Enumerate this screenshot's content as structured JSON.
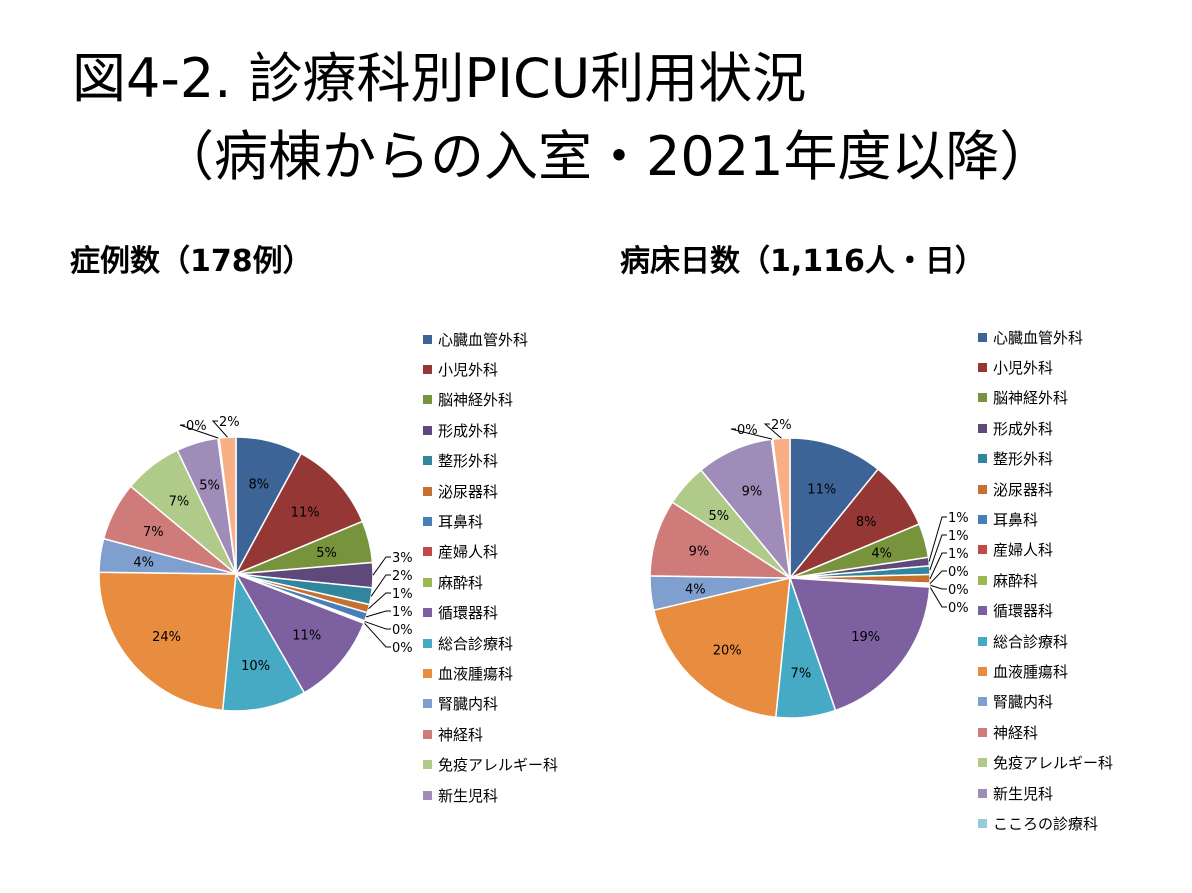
{
  "title": {
    "line1": "図4-2. 診療科別PICU利用状況",
    "line2": "（病棟からの入室・2021年度以降）"
  },
  "chart_data": [
    {
      "type": "pie",
      "title": "症例数（178例）",
      "legend_position": "right",
      "categories": [
        "心臓血管外科",
        "小児外科",
        "脳神経外科",
        "形成外科",
        "整形外科",
        "泌尿器科",
        "耳鼻科",
        "産婦人科",
        "麻酔科",
        "循環器科",
        "総合診療科",
        "血液腫瘍科",
        "腎臓内科",
        "神経科",
        "免疫アレルギー科",
        "新生児科",
        "",
        ""
      ],
      "legend": [
        "心臓血管外科",
        "小児外科",
        "脳神経外科",
        "形成外科",
        "整形外科",
        "泌尿器科",
        "耳鼻科",
        "産婦人科",
        "麻酔科",
        "循環器科",
        "総合診療科",
        "血液腫瘍科",
        "腎臓内科",
        "神経科",
        "免疫アレルギー科",
        "新生児科"
      ],
      "values": [
        8,
        11,
        5,
        3,
        2,
        1,
        1,
        0,
        0,
        11,
        10,
        24,
        4,
        7,
        7,
        5,
        0,
        2
      ],
      "labels": [
        "8%",
        "11%",
        "5%",
        "3%",
        "2%",
        "1%",
        "1%",
        "0%",
        "0%",
        "11%",
        "10%",
        "24%",
        "4%",
        "7%",
        "7%",
        "5%",
        "0%",
        "2%"
      ],
      "colors": [
        "#3C6496",
        "#953735",
        "#77933C",
        "#5F497A",
        "#31859C",
        "#C4702E",
        "#4A7EBB",
        "#BE4B48",
        "#98B954",
        "#7D60A0",
        "#46AAC5",
        "#E88C3F",
        "#7F9FCF",
        "#CF7B79",
        "#B0CA89",
        "#A08CB8",
        "#93CDDD",
        "#F9AF86"
      ]
    },
    {
      "type": "pie",
      "title": "病床日数（1,116人・日）",
      "legend_position": "right",
      "categories": [
        "心臓血管外科",
        "小児外科",
        "脳神経外科",
        "形成外科",
        "整形外科",
        "泌尿器科",
        "耳鼻科",
        "産婦人科",
        "麻酔科",
        "循環器科",
        "総合診療科",
        "血液腫瘍科",
        "腎臓内科",
        "神経科",
        "免疫アレルギー科",
        "新生児科",
        "こころの診療科",
        ""
      ],
      "legend": [
        "心臓血管外科",
        "小児外科",
        "脳神経外科",
        "形成外科",
        "整形外科",
        "泌尿器科",
        "耳鼻科",
        "産婦人科",
        "麻酔科",
        "循環器科",
        "総合診療科",
        "血液腫瘍科",
        "腎臓内科",
        "神経科",
        "免疫アレルギー科",
        "新生児科",
        "こころの診療科"
      ],
      "values": [
        11,
        8,
        4,
        1,
        1,
        1,
        0,
        0,
        0,
        19,
        7,
        20,
        4,
        9,
        5,
        9,
        0,
        2
      ],
      "labels": [
        "11%",
        "8%",
        "4%",
        "1%",
        "1%",
        "1%",
        "0%",
        "0%",
        "0%",
        "19%",
        "7%",
        "20%",
        "4%",
        "9%",
        "5%",
        "9%",
        "0%",
        "2%"
      ],
      "colors": [
        "#3C6496",
        "#953735",
        "#77933C",
        "#5F497A",
        "#31859C",
        "#C4702E",
        "#4A7EBB",
        "#BE4B48",
        "#98B954",
        "#7D60A0",
        "#46AAC5",
        "#E88C3F",
        "#7F9FCF",
        "#CF7B79",
        "#B0CA89",
        "#A08CB8",
        "#93CDDD",
        "#F9AF86"
      ]
    }
  ]
}
